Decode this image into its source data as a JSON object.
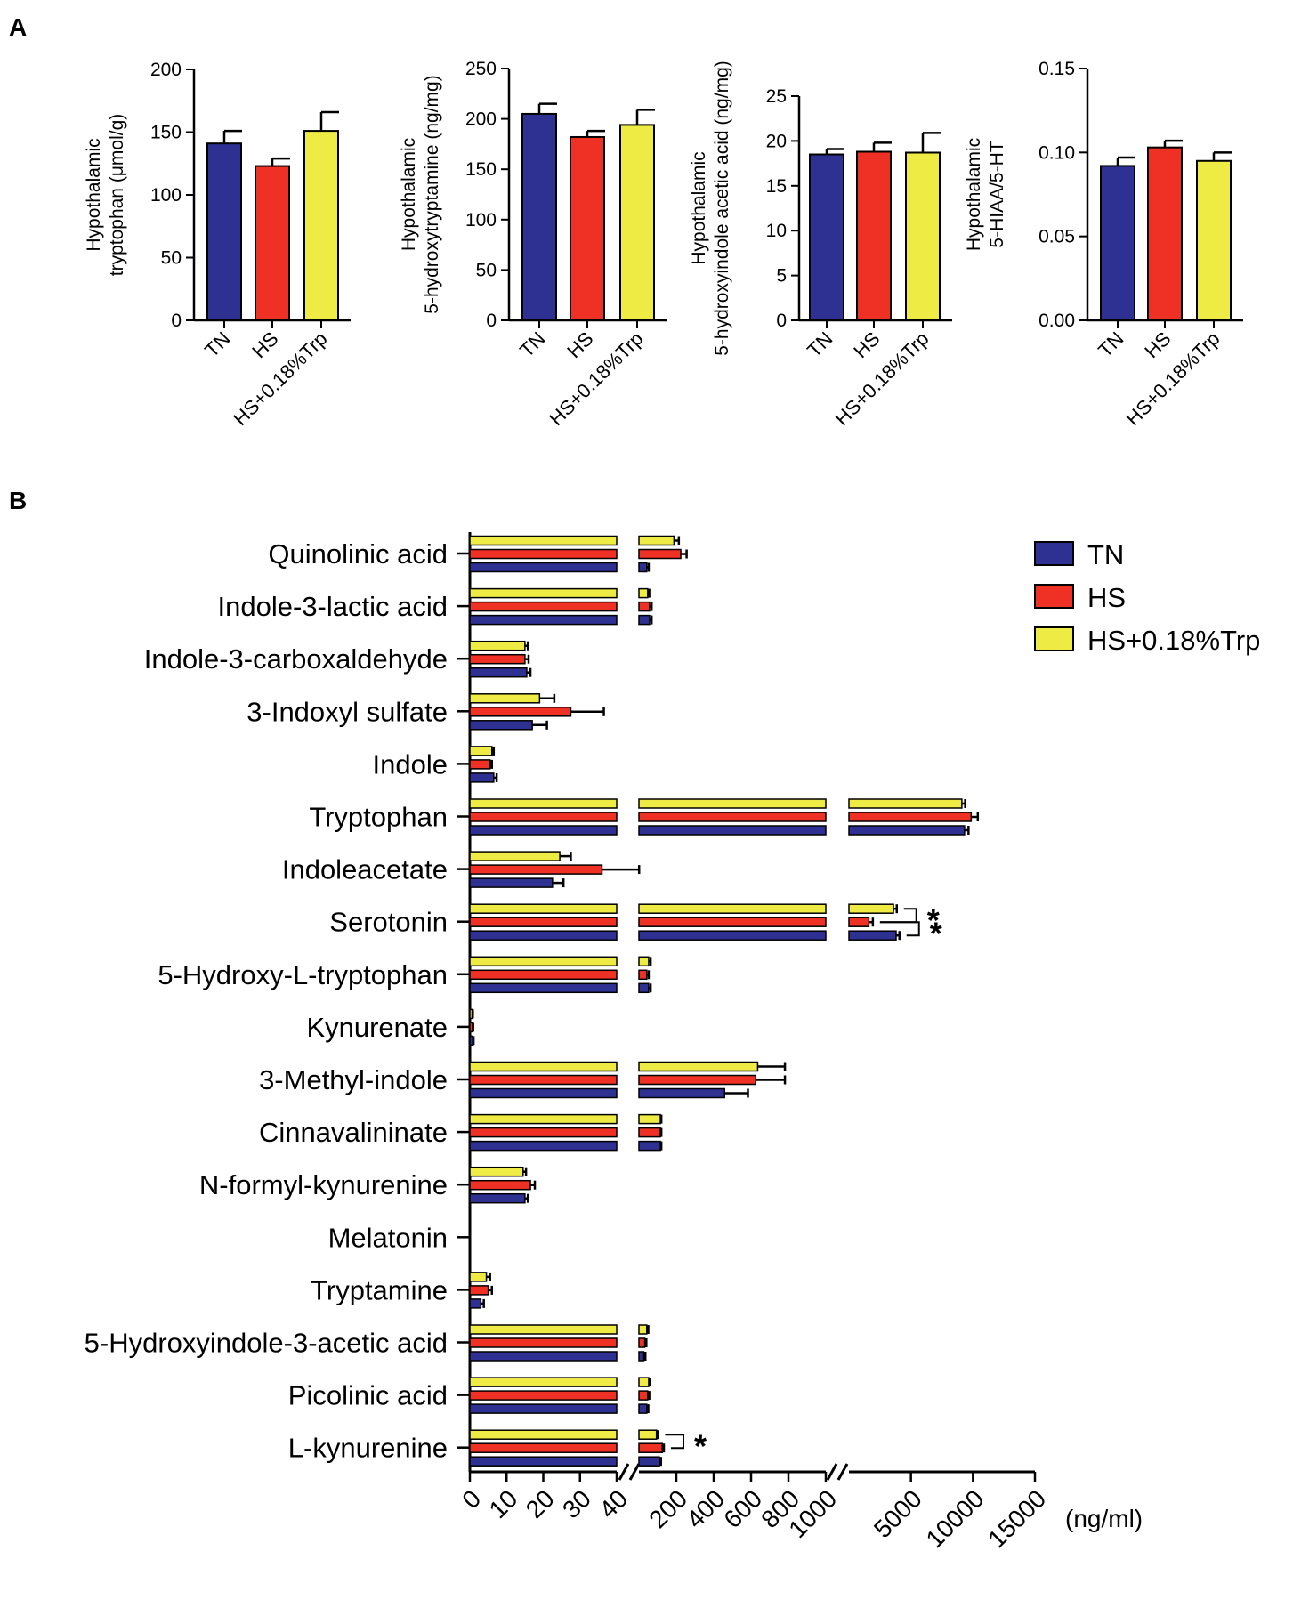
{
  "panels": {
    "a": {
      "letter": "A"
    },
    "b": {
      "letter": "B"
    }
  },
  "colors": {
    "TN": "#2e3192",
    "HS": "#ee3124",
    "HS+0.18%Trp": "#eeeb44"
  },
  "chart_data": [
    {
      "id": "a1",
      "type": "bar",
      "ylabel": [
        "Hypothalamic",
        "tryptophan (μmol/g)"
      ],
      "categories": [
        "TN",
        "HS",
        "HS+0.18%Trp"
      ],
      "values": [
        141,
        123,
        151
      ],
      "errors": [
        10,
        6,
        15
      ],
      "ylim": [
        0,
        200
      ],
      "yticks": [
        "0",
        "50",
        "100",
        "150",
        "200"
      ]
    },
    {
      "id": "a2",
      "type": "bar",
      "ylabel": [
        "Hypothalamic",
        "5-hydroxytryptamine (ng/mg)"
      ],
      "categories": [
        "TN",
        "HS",
        "HS+0.18%Trp"
      ],
      "values": [
        205,
        182,
        194
      ],
      "errors": [
        10,
        6,
        15
      ],
      "ylim": [
        0,
        250
      ],
      "yticks": [
        "0",
        "50",
        "100",
        "150",
        "200",
        "250"
      ]
    },
    {
      "id": "a3",
      "type": "bar",
      "ylabel": [
        "Hypothalamic",
        "5-hydroxyindole acetic acid (ng/mg)"
      ],
      "categories": [
        "TN",
        "HS",
        "HS+0.18%Trp"
      ],
      "values": [
        18.5,
        18.8,
        18.7
      ],
      "errors": [
        0.6,
        1.0,
        2.2
      ],
      "ylim": [
        0,
        25
      ],
      "yticks": [
        "0",
        "5",
        "10",
        "15",
        "20",
        "25"
      ]
    },
    {
      "id": "a4",
      "type": "bar",
      "ylabel": [
        "Hypothalamic",
        "5-HIAA/5-HT"
      ],
      "categories": [
        "TN",
        "HS",
        "HS+0.18%Trp"
      ],
      "values": [
        0.092,
        0.103,
        0.095
      ],
      "errors": [
        0.005,
        0.004,
        0.005
      ],
      "ylim": [
        0,
        0.15
      ],
      "yticks": [
        "0.00",
        "0.05",
        "0.10",
        "0.15"
      ]
    },
    {
      "id": "b",
      "type": "bar",
      "orientation": "horizontal",
      "xlabel": "(ng/ml)",
      "series": [
        "TN",
        "HS",
        "HS+0.18%Trp"
      ],
      "legend": [
        "TN",
        "HS",
        "HS+0.18%Trp"
      ],
      "axis_segments": [
        {
          "range": [
            0,
            40
          ],
          "ticks": [
            "0",
            "10",
            "20",
            "30",
            "40"
          ]
        },
        {
          "range": [
            40,
            1000
          ],
          "ticks": [
            "200",
            "400",
            "600",
            "800",
            "1000"
          ]
        },
        {
          "range": [
            1000,
            15000
          ],
          "ticks": [
            "5000",
            "10000",
            "15000"
          ]
        }
      ],
      "metabolites": [
        {
          "name": "Quinolinic acid",
          "values": {
            "TN": 80,
            "HS": 255,
            "HS+0.18%Trp": 220
          },
          "errors": {
            "TN": 10,
            "HS": 30,
            "HS+0.18%Trp": 25
          }
        },
        {
          "name": "Indole-3-lactic acid",
          "values": {
            "TN": 95,
            "HS": 95,
            "HS+0.18%Trp": 85
          },
          "errors": {
            "TN": 10,
            "HS": 10,
            "HS+0.18%Trp": 8
          }
        },
        {
          "name": "Indole-3-carboxaldehyde",
          "values": {
            "TN": 15.5,
            "HS": 15,
            "HS+0.18%Trp": 15
          },
          "errors": {
            "TN": 1,
            "HS": 1,
            "HS+0.18%Trp": 0.8
          }
        },
        {
          "name": "3-Indoxyl sulfate",
          "values": {
            "TN": 17,
            "HS": 27.5,
            "HS+0.18%Trp": 19
          },
          "errors": {
            "TN": 4,
            "HS": 9,
            "HS+0.18%Trp": 4
          }
        },
        {
          "name": "Indole",
          "values": {
            "TN": 6.5,
            "HS": 5.5,
            "HS+0.18%Trp": 6
          },
          "errors": {
            "TN": 0.8,
            "HS": 0.5,
            "HS+0.18%Trp": 0.5
          }
        },
        {
          "name": "Tryptophan",
          "values": {
            "TN": 9700,
            "HS": 10200,
            "HS+0.18%Trp": 9500
          },
          "errors": {
            "TN": 300,
            "HS": 500,
            "HS+0.18%Trp": 250
          }
        },
        {
          "name": "Indoleacetate",
          "values": {
            "TN": 22.5,
            "HS": 36,
            "HS+0.18%Trp": 24.5
          },
          "errors": {
            "TN": 3,
            "HS": 5,
            "HS+0.18%Trp": 3
          }
        },
        {
          "name": "Serotonin",
          "values": {
            "TN": 4550,
            "HS": 2500,
            "HS+0.18%Trp": 4350
          },
          "errors": {
            "TN": 250,
            "HS": 300,
            "HS+0.18%Trp": 250
          }
        },
        {
          "name": "5-Hydroxy-L-tryptophan",
          "values": {
            "TN": 90,
            "HS": 80,
            "HS+0.18%Trp": 90
          },
          "errors": {
            "TN": 10,
            "HS": 10,
            "HS+0.18%Trp": 10
          }
        },
        {
          "name": "Kynurenate",
          "values": {
            "TN": 0.8,
            "HS": 0.7,
            "HS+0.18%Trp": 0.6
          },
          "errors": {
            "TN": 0.2,
            "HS": 0.2,
            "HS+0.18%Trp": 0.2
          }
        },
        {
          "name": "3-Methyl-indole",
          "values": {
            "TN": 480,
            "HS": 640,
            "HS+0.18%Trp": 650
          },
          "errors": {
            "TN": 120,
            "HS": 150,
            "HS+0.18%Trp": 140
          }
        },
        {
          "name": "Cinnavalininate",
          "values": {
            "TN": 150,
            "HS": 150,
            "HS+0.18%Trp": 150
          },
          "errors": {
            "TN": 5,
            "HS": 5,
            "HS+0.18%Trp": 5
          }
        },
        {
          "name": "N-formyl-kynurenine",
          "values": {
            "TN": 15,
            "HS": 16.5,
            "HS+0.18%Trp": 14.5
          },
          "errors": {
            "TN": 0.8,
            "HS": 1.2,
            "HS+0.18%Trp": 0.8
          }
        },
        {
          "name": "Melatonin",
          "values": {
            "TN": 0,
            "HS": 0,
            "HS+0.18%Trp": 0
          },
          "errors": {
            "TN": 0,
            "HS": 0,
            "HS+0.18%Trp": 0
          }
        },
        {
          "name": "Tryptamine",
          "values": {
            "TN": 3,
            "HS": 5,
            "HS+0.18%Trp": 4.5
          },
          "errors": {
            "TN": 0.8,
            "HS": 1,
            "HS+0.18%Trp": 1
          }
        },
        {
          "name": "5-Hydroxyindole-3-acetic acid",
          "values": {
            "TN": 65,
            "HS": 70,
            "HS+0.18%Trp": 80
          },
          "errors": {
            "TN": 8,
            "HS": 8,
            "HS+0.18%Trp": 8
          }
        },
        {
          "name": "Picolinic acid",
          "values": {
            "TN": 80,
            "HS": 85,
            "HS+0.18%Trp": 90
          },
          "errors": {
            "TN": 8,
            "HS": 8,
            "HS+0.18%Trp": 8
          }
        },
        {
          "name": "L-kynurenine",
          "values": {
            "TN": 145,
            "HS": 160,
            "HS+0.18%Trp": 130
          },
          "errors": {
            "TN": 8,
            "HS": 8,
            "HS+0.18%Trp": 8
          }
        }
      ],
      "significance": [
        {
          "metabolite": "Serotonin",
          "pair": [
            "HS+0.18%Trp",
            "HS"
          ],
          "label": "*"
        },
        {
          "metabolite": "Serotonin",
          "pair": [
            "HS",
            "TN"
          ],
          "label": "*"
        },
        {
          "metabolite": "L-kynurenine",
          "pair": [
            "HS+0.18%Trp",
            "HS"
          ],
          "label": "*"
        }
      ]
    }
  ]
}
